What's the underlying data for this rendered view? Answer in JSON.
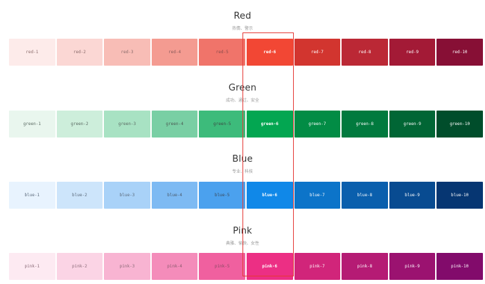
{
  "groups": [
    {
      "title": "Red",
      "subtitle": "热情、警示",
      "swatches": [
        {
          "label": "red-1",
          "color": "#fdebea",
          "text": "#8a6b6b",
          "bold": false
        },
        {
          "label": "red-2",
          "color": "#fbd7d4",
          "text": "#8a6b6b",
          "bold": false
        },
        {
          "label": "red-3",
          "color": "#f8bdb6",
          "text": "#8a6b6b",
          "bold": false
        },
        {
          "label": "red-4",
          "color": "#f49b91",
          "text": "#8a5b5b",
          "bold": false
        },
        {
          "label": "red-5",
          "color": "#f0746a",
          "text": "#8a4b4b",
          "bold": false
        },
        {
          "label": "red-6",
          "color": "#f24734",
          "text": "#ffffff",
          "bold": true
        },
        {
          "label": "red-7",
          "color": "#d2352f",
          "text": "#ffffff",
          "bold": false
        },
        {
          "label": "red-8",
          "color": "#bb2835",
          "text": "#ffffff",
          "bold": false
        },
        {
          "label": "red-9",
          "color": "#a31a36",
          "text": "#ffffff",
          "bold": false
        },
        {
          "label": "red-10",
          "color": "#870f35",
          "text": "#ffffff",
          "bold": false
        }
      ]
    },
    {
      "title": "Green",
      "subtitle": "成功、通过、安全",
      "swatches": [
        {
          "label": "green-1",
          "color": "#e9f6ee",
          "text": "#5b6b63",
          "bold": false
        },
        {
          "label": "green-2",
          "color": "#cdeedb",
          "text": "#5b6b63",
          "bold": false
        },
        {
          "label": "green-3",
          "color": "#a8e2c3",
          "text": "#5b6b63",
          "bold": false
        },
        {
          "label": "green-4",
          "color": "#79cfa4",
          "text": "#4b5b53",
          "bold": false
        },
        {
          "label": "green-5",
          "color": "#3dbb7b",
          "text": "#3b4b43",
          "bold": false
        },
        {
          "label": "green-6",
          "color": "#03a651",
          "text": "#ffffff",
          "bold": true
        },
        {
          "label": "green-7",
          "color": "#028c45",
          "text": "#ffffff",
          "bold": false
        },
        {
          "label": "green-8",
          "color": "#017a3e",
          "text": "#ffffff",
          "bold": false
        },
        {
          "label": "green-9",
          "color": "#016635",
          "text": "#ffffff",
          "bold": false
        },
        {
          "label": "green-10",
          "color": "#004d2b",
          "text": "#ffffff",
          "bold": false
        }
      ]
    },
    {
      "title": "Blue",
      "subtitle": "专业、科技",
      "swatches": [
        {
          "label": "blue-1",
          "color": "#e8f3fe",
          "text": "#5b6a7b",
          "bold": false
        },
        {
          "label": "blue-2",
          "color": "#cde5fb",
          "text": "#5b6a7b",
          "bold": false
        },
        {
          "label": "blue-3",
          "color": "#a9d2f8",
          "text": "#5b6a7b",
          "bold": false
        },
        {
          "label": "blue-4",
          "color": "#7dbaf3",
          "text": "#4b5a6b",
          "bold": false
        },
        {
          "label": "blue-5",
          "color": "#4ba1ee",
          "text": "#3b4a5b",
          "bold": false
        },
        {
          "label": "blue-6",
          "color": "#1088e8",
          "text": "#ffffff",
          "bold": true
        },
        {
          "label": "blue-7",
          "color": "#0c74c9",
          "text": "#ffffff",
          "bold": false
        },
        {
          "label": "blue-8",
          "color": "#0a5fad",
          "text": "#ffffff",
          "bold": false
        },
        {
          "label": "blue-9",
          "color": "#084b91",
          "text": "#ffffff",
          "bold": false
        },
        {
          "label": "blue-10",
          "color": "#063672",
          "text": "#ffffff",
          "bold": false
        }
      ]
    },
    {
      "title": "Pink",
      "subtitle": "典雅、愉快、女性",
      "swatches": [
        {
          "label": "pink-1",
          "color": "#fdeaf2",
          "text": "#8a6b78",
          "bold": false
        },
        {
          "label": "pink-2",
          "color": "#fbd4e5",
          "text": "#8a6b78",
          "bold": false
        },
        {
          "label": "pink-3",
          "color": "#f8b4d2",
          "text": "#8a6b78",
          "bold": false
        },
        {
          "label": "pink-4",
          "color": "#f48cba",
          "text": "#8a5b6e",
          "bold": false
        },
        {
          "label": "pink-5",
          "color": "#f0609f",
          "text": "#8a4b64",
          "bold": false
        },
        {
          "label": "pink-6",
          "color": "#ec2f84",
          "text": "#ffffff",
          "bold": true
        },
        {
          "label": "pink-7",
          "color": "#d1257a",
          "text": "#ffffff",
          "bold": false
        },
        {
          "label": "pink-8",
          "color": "#b51b74",
          "text": "#ffffff",
          "bold": false
        },
        {
          "label": "pink-9",
          "color": "#9b1270",
          "text": "#ffffff",
          "bold": false
        },
        {
          "label": "pink-10",
          "color": "#820b6b",
          "text": "#ffffff",
          "bold": false
        }
      ]
    }
  ],
  "highlight": {
    "color": "#e53935"
  }
}
